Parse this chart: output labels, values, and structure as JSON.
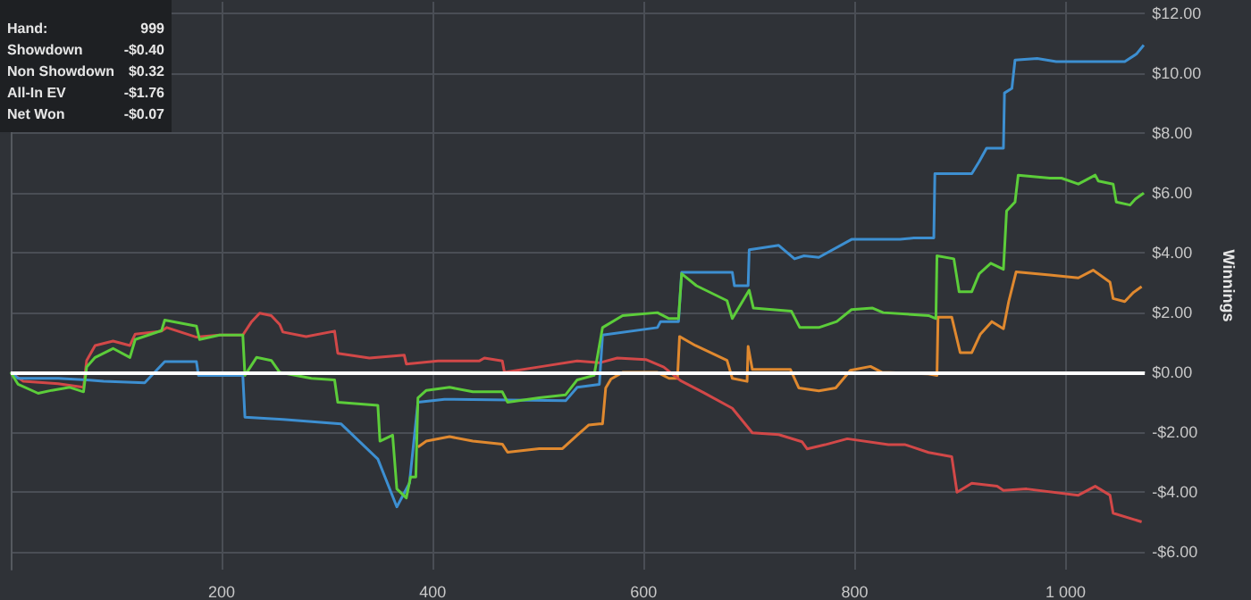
{
  "chart_data": {
    "type": "line",
    "ylabel": "Winnings",
    "xlim": [
      0,
      1075
    ],
    "ylim": [
      -6.6,
      12.4
    ],
    "xticks": [
      200,
      400,
      600,
      800,
      {
        "value": 1000,
        "label": "1 000"
      }
    ],
    "yticks": [
      {
        "value": -6,
        "label": "-$6.00"
      },
      {
        "value": -4,
        "label": "-$4.00"
      },
      {
        "value": -2,
        "label": "-$2.00"
      },
      {
        "value": 0,
        "label": "$0.00"
      },
      {
        "value": 2,
        "label": "$2.00"
      },
      {
        "value": 4,
        "label": "$4.00"
      },
      {
        "value": 6,
        "label": "$6.00"
      },
      {
        "value": 8,
        "label": "$8.00"
      },
      {
        "value": 10,
        "label": "$10.00"
      },
      {
        "value": 12,
        "label": "$12.00"
      }
    ],
    "grid": true,
    "marker": "none",
    "line_style": "solid",
    "ref_lines": [
      {
        "axis": "y",
        "value": 0,
        "label": null,
        "color": "#ffffff"
      }
    ],
    "annotations": [
      "Hand: 999",
      "Showdown -$0.40",
      "Non Showdown $0.32",
      "All-In EV -$1.76",
      "Net Won -$0.07"
    ],
    "series": [
      {
        "color": "#e0892f",
        "x": [
          386,
          394,
          416,
          438,
          466,
          471,
          501,
          523,
          537,
          548,
          558,
          561,
          564,
          569,
          580,
          613,
          624,
          632,
          634,
          649,
          679,
          684,
          698,
          699,
          703,
          739,
          747,
          766,
          782,
          796,
          815,
          826,
          870,
          878,
          879,
          892,
          900,
          911,
          919,
          930,
          941,
          946,
          953,
          985,
          1012,
          1026,
          1042,
          1045,
          1056,
          1064,
          1072
        ],
        "values": [
          -2.5,
          -2.3,
          -2.15,
          -2.3,
          -2.4,
          -2.67,
          -2.55,
          -2.55,
          -2.1,
          -1.76,
          -1.72,
          -1.72,
          -0.52,
          -0.22,
          0,
          0,
          -0.2,
          -0.2,
          1.2,
          0.9,
          0.4,
          -0.2,
          -0.3,
          0.87,
          0.1,
          0.1,
          -0.52,
          -0.62,
          -0.52,
          0.07,
          0.2,
          0,
          -0.05,
          -0.1,
          1.85,
          1.85,
          0.66,
          0.66,
          1.27,
          1.7,
          1.46,
          2.37,
          3.36,
          3.26,
          3.16,
          3.42,
          3.02,
          2.47,
          2.37,
          2.67,
          2.87
        ]
      },
      {
        "color": "#d24848",
        "x": [
          0,
          12,
          45,
          69,
          72,
          80,
          97,
          113,
          118,
          143,
          148,
          176,
          198,
          220,
          228,
          236,
          247,
          255,
          258,
          280,
          307,
          310,
          340,
          373,
          375,
          405,
          444,
          449,
          466,
          468,
          504,
          537,
          558,
          575,
          602,
          619,
          635,
          657,
          684,
          703,
          728,
          750,
          755,
          772,
          793,
          832,
          848,
          870,
          892,
          897,
          911,
          935,
          941,
          963,
          1012,
          1028,
          1042,
          1045,
          1072
        ],
        "values": [
          0,
          -0.3,
          -0.38,
          -0.5,
          0.4,
          0.9,
          1.05,
          0.9,
          1.28,
          1.38,
          1.5,
          1.18,
          1.25,
          1.25,
          1.68,
          1.98,
          1.9,
          1.6,
          1.35,
          1.2,
          1.38,
          0.64,
          0.48,
          0.58,
          0.28,
          0.38,
          0.38,
          0.48,
          0.38,
          0,
          0.2,
          0.38,
          0.32,
          0.48,
          0.43,
          0.18,
          -0.28,
          -0.68,
          -1.2,
          -2.02,
          -2.08,
          -2.32,
          -2.56,
          -2.42,
          -2.22,
          -2.42,
          -2.42,
          -2.68,
          -2.82,
          -4.01,
          -3.71,
          -3.81,
          -3.95,
          -3.9,
          -4.11,
          -3.81,
          -4.11,
          -4.71,
          -5.0
        ]
      },
      {
        "color": "#3d8fd1",
        "x": [
          0,
          7,
          23,
          45,
          72,
          88,
          127,
          146,
          176,
          178,
          220,
          222,
          258,
          313,
          348,
          366,
          378,
          386,
          411,
          526,
          537,
          558,
          561,
          613,
          616,
          633,
          636,
          684,
          686,
          699,
          700,
          728,
          743,
          752,
          766,
          797,
          843,
          856,
          875,
          876,
          911,
          918,
          925,
          941,
          942,
          949,
          952,
          973,
          991,
          1056,
          1067,
          1074
        ],
        "values": [
          0,
          -0.2,
          -0.2,
          -0.2,
          -0.25,
          -0.3,
          -0.35,
          0.36,
          0.36,
          -0.1,
          -0.1,
          -1.5,
          -1.57,
          -1.72,
          -2.9,
          -4.5,
          -3.7,
          -1.0,
          -0.9,
          -0.95,
          -0.5,
          -0.4,
          1.25,
          1.5,
          1.7,
          1.7,
          3.35,
          3.35,
          2.9,
          2.9,
          4.1,
          4.25,
          3.8,
          3.9,
          3.85,
          4.45,
          4.45,
          4.5,
          4.5,
          6.65,
          6.65,
          7.05,
          7.5,
          7.5,
          9.35,
          9.5,
          10.45,
          10.5,
          10.4,
          10.4,
          10.65,
          10.95
        ]
      },
      {
        "color": "#5ccd3a",
        "x": [
          0,
          7,
          26,
          39,
          56,
          69,
          72,
          80,
          97,
          113,
          118,
          143,
          146,
          176,
          179,
          198,
          220,
          222,
          233,
          247,
          255,
          285,
          307,
          310,
          348,
          350,
          362,
          366,
          375,
          379,
          384,
          386,
          394,
          416,
          438,
          466,
          471,
          501,
          526,
          537,
          553,
          561,
          580,
          613,
          624,
          633,
          636,
          650,
          679,
          684,
          700,
          704,
          740,
          748,
          766,
          783,
          797,
          817,
          827,
          870,
          877,
          878,
          894,
          899,
          911,
          918,
          929,
          941,
          944,
          952,
          955,
          985,
          996,
          1012,
          1028,
          1031,
          1045,
          1048,
          1061,
          1066,
          1074
        ],
        "values": [
          0,
          -0.4,
          -0.7,
          -0.6,
          -0.5,
          -0.65,
          0.18,
          0.5,
          0.8,
          0.5,
          1.1,
          1.4,
          1.75,
          1.55,
          1.1,
          1.25,
          1.25,
          -0.1,
          0.5,
          0.4,
          0,
          -0.2,
          -0.25,
          -1.0,
          -1.1,
          -2.3,
          -2.1,
          -3.9,
          -4.2,
          -3.5,
          -3.5,
          -0.85,
          -0.6,
          -0.5,
          -0.65,
          -0.65,
          -1.0,
          -0.85,
          -0.75,
          -0.25,
          -0.1,
          1.5,
          1.9,
          2.0,
          1.8,
          1.8,
          3.3,
          2.9,
          2.4,
          1.8,
          2.75,
          2.15,
          2.05,
          1.5,
          1.5,
          1.7,
          2.1,
          2.15,
          2.0,
          1.9,
          1.8,
          3.9,
          3.8,
          2.7,
          2.7,
          3.3,
          3.65,
          3.45,
          5.4,
          5.7,
          6.6,
          6.5,
          6.5,
          6.3,
          6.6,
          6.4,
          6.3,
          5.7,
          5.6,
          5.8,
          6.0
        ]
      }
    ]
  }
}
